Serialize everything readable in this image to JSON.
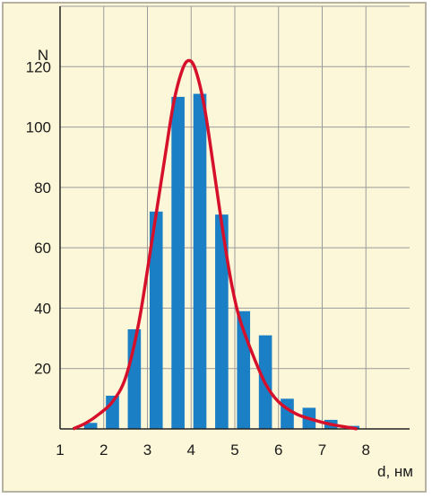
{
  "chart_data": {
    "type": "bar",
    "title": "",
    "xlabel": "d, нм",
    "ylabel": "N",
    "xlim": [
      1,
      9
    ],
    "ylim": [
      0,
      140
    ],
    "x_ticks": [
      1,
      2,
      3,
      4,
      5,
      6,
      7,
      8
    ],
    "y_ticks": [
      20,
      40,
      60,
      80,
      100,
      120
    ],
    "grid": true,
    "bar_x": [
      1.7,
      2.2,
      2.7,
      3.2,
      3.7,
      4.2,
      4.7,
      5.2,
      5.7,
      6.2,
      6.7,
      7.2,
      7.7
    ],
    "bar_values": [
      2,
      11,
      33,
      72,
      110,
      111,
      71,
      39,
      31,
      10,
      7,
      3,
      1
    ],
    "bar_color": "#1b7fc6",
    "curve_color": "#d6102a",
    "curve_points": [
      [
        1.3,
        0
      ],
      [
        1.6,
        2
      ],
      [
        1.9,
        5
      ],
      [
        2.2,
        9
      ],
      [
        2.5,
        17
      ],
      [
        2.8,
        35
      ],
      [
        3.1,
        62
      ],
      [
        3.4,
        90
      ],
      [
        3.6,
        108
      ],
      [
        3.8,
        119
      ],
      [
        3.95,
        122
      ],
      [
        4.1,
        119
      ],
      [
        4.3,
        107
      ],
      [
        4.5,
        88
      ],
      [
        4.7,
        68
      ],
      [
        4.9,
        50
      ],
      [
        5.1,
        37
      ],
      [
        5.4,
        25
      ],
      [
        5.7,
        15
      ],
      [
        6.0,
        9
      ],
      [
        6.4,
        5
      ],
      [
        6.8,
        3
      ],
      [
        7.2,
        1.5
      ],
      [
        7.6,
        0.5
      ],
      [
        7.8,
        0
      ]
    ]
  }
}
